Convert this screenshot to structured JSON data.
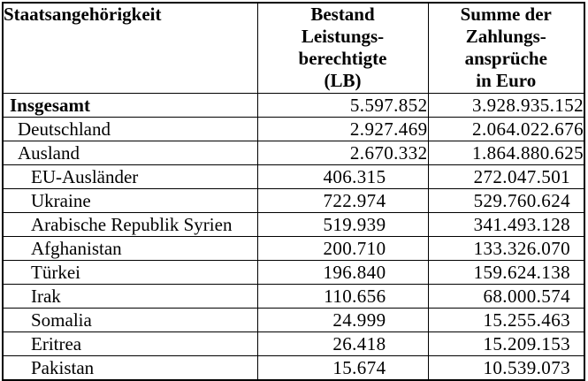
{
  "colors": {
    "border": "#000000",
    "text": "#000000",
    "background": "#ffffff"
  },
  "table": {
    "header": {
      "col1": "Staatsangehörigkeit",
      "col2": "Bestand\nLeistungs-\nberechtigte\n(LB)",
      "col3": "Summe der\nZahlungs-\nansprüche\nin Euro"
    },
    "rows": [
      {
        "name": "Insgesamt",
        "indent": 0,
        "bold": true,
        "lb": "5.597.852",
        "euro": "3.928.935.152"
      },
      {
        "name": "Deutschland",
        "indent": 1,
        "bold": false,
        "lb": "2.927.469",
        "euro": "2.064.022.676"
      },
      {
        "name": "Ausland",
        "indent": 1,
        "bold": false,
        "lb": "2.670.332",
        "euro": "1.864.880.625"
      },
      {
        "name": "EU-Ausländer",
        "indent": 2,
        "bold": false,
        "lb": "406.315",
        "euro": "272.047.501"
      },
      {
        "name": "Ukraine",
        "indent": 2,
        "bold": false,
        "lb": "722.974",
        "euro": "529.760.624"
      },
      {
        "name": "Arabische Republik Syrien",
        "indent": 2,
        "bold": false,
        "lb": "519.939",
        "euro": "341.493.128"
      },
      {
        "name": "Afghanistan",
        "indent": 2,
        "bold": false,
        "lb": "200.710",
        "euro": "133.326.070"
      },
      {
        "name": "Türkei",
        "indent": 2,
        "bold": false,
        "lb": "196.840",
        "euro": "159.624.138"
      },
      {
        "name": "Irak",
        "indent": 2,
        "bold": false,
        "lb": "110.656",
        "euro": "68.000.574"
      },
      {
        "name": "Somalia",
        "indent": 2,
        "bold": false,
        "lb": "24.999",
        "euro": "15.255.463"
      },
      {
        "name": "Eritrea",
        "indent": 2,
        "bold": false,
        "lb": "26.418",
        "euro": "15.209.153"
      },
      {
        "name": "Pakistan",
        "indent": 2,
        "bold": false,
        "lb": "15.674",
        "euro": "10.539.073"
      }
    ]
  }
}
